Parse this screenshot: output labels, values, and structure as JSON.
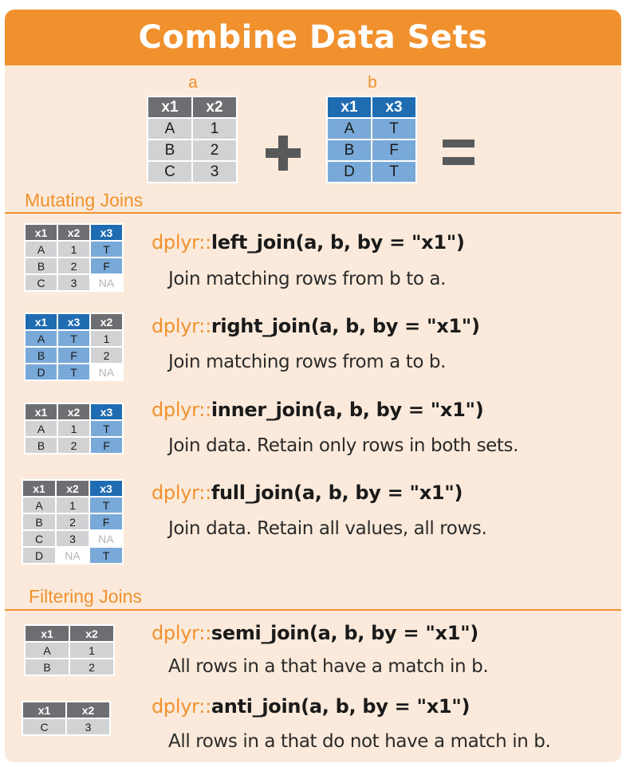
{
  "header": {
    "title": "Combine Data Sets"
  },
  "table_a": {
    "label": "a",
    "headers": [
      "x1",
      "x2"
    ],
    "rows": [
      [
        "A",
        "1"
      ],
      [
        "B",
        "2"
      ],
      [
        "C",
        "3"
      ]
    ]
  },
  "table_b": {
    "label": "b",
    "headers": [
      "x1",
      "x3"
    ],
    "rows": [
      [
        "A",
        "T"
      ],
      [
        "B",
        "F"
      ],
      [
        "D",
        "T"
      ]
    ]
  },
  "operators": {
    "plus": "plus-operator",
    "equals": "equals-operator"
  },
  "sections": {
    "mutating": "Mutating Joins",
    "filtering": "Filtering Joins"
  },
  "joins": [
    {
      "pkg": "dplyr::",
      "call": "left_join(a, b, by = \"x1\")",
      "desc": "Join matching rows from b to a.",
      "headers": [
        "x1",
        "x2",
        "x3"
      ],
      "rows": [
        [
          "A",
          "1",
          "T"
        ],
        [
          "B",
          "2",
          "F"
        ],
        [
          "C",
          "3",
          "NA"
        ]
      ]
    },
    {
      "pkg": "dplyr::",
      "call": "right_join(a, b, by = \"x1\")",
      "desc": "Join matching rows from a to b.",
      "headers": [
        "x1",
        "x3",
        "x2"
      ],
      "rows": [
        [
          "A",
          "T",
          "1"
        ],
        [
          "B",
          "F",
          "2"
        ],
        [
          "D",
          "T",
          "NA"
        ]
      ]
    },
    {
      "pkg": "dplyr::",
      "call": "inner_join(a, b, by = \"x1\")",
      "desc": "Join data. Retain only rows in both sets.",
      "headers": [
        "x1",
        "x2",
        "x3"
      ],
      "rows": [
        [
          "A",
          "1",
          "T"
        ],
        [
          "B",
          "2",
          "F"
        ]
      ]
    },
    {
      "pkg": "dplyr::",
      "call": "full_join(a, b, by = \"x1\")",
      "desc": "Join data. Retain all values, all rows.",
      "headers": [
        "x1",
        "x2",
        "x3"
      ],
      "rows": [
        [
          "A",
          "1",
          "T"
        ],
        [
          "B",
          "2",
          "F"
        ],
        [
          "C",
          "3",
          "NA"
        ],
        [
          "D",
          "NA",
          "T"
        ]
      ]
    },
    {
      "pkg": "dplyr::",
      "call": "semi_join(a, b, by = \"x1\")",
      "desc": "All rows in a that have a match in b.",
      "headers": [
        "x1",
        "x2"
      ],
      "rows": [
        [
          "A",
          "1"
        ],
        [
          "B",
          "2"
        ]
      ]
    },
    {
      "pkg": "dplyr::",
      "call": "anti_join(a, b, by = \"x1\")",
      "desc": "All rows in a that do not have a match in b.",
      "headers": [
        "x1",
        "x2"
      ],
      "rows": [
        [
          "C",
          "3"
        ]
      ]
    }
  ],
  "colors": {
    "orange": "#f0912e",
    "background": "#fbeadb",
    "gray_header": "#6d6e71",
    "gray_cell": "#d1d2d4",
    "blue_header": "#1f6cb2",
    "blue_cell": "#79a9d8",
    "na_text": "#b4b4b4"
  }
}
